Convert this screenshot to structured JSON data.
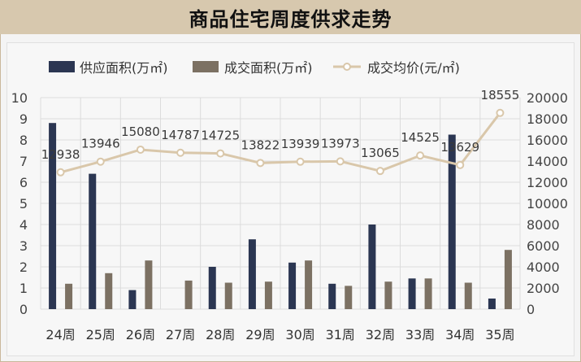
{
  "page": {
    "title": "商品住宅周度供求走势"
  },
  "colors": {
    "supply": "#2b3652",
    "deal": "#7c7163",
    "price_line": "#d9c7aa",
    "title_bg": "#d7c8ae"
  },
  "chart_data": {
    "type": "bar",
    "title": "商品住宅周度供求走势",
    "categories": [
      "24周",
      "25周",
      "26周",
      "27周",
      "28周",
      "29周",
      "30周",
      "31周",
      "32周",
      "33周",
      "34周",
      "35周"
    ],
    "series": [
      {
        "name": "供应面积(万㎡)",
        "type": "bar",
        "axis": "left",
        "values": [
          8.8,
          6.4,
          0.9,
          0,
          2.0,
          3.3,
          2.2,
          1.2,
          4.0,
          1.45,
          8.25,
          0.5
        ]
      },
      {
        "name": "成交面积(万㎡)",
        "type": "bar",
        "axis": "left",
        "values": [
          1.2,
          1.7,
          2.3,
          1.35,
          1.25,
          1.3,
          2.3,
          1.1,
          1.3,
          1.45,
          1.25,
          2.8
        ]
      },
      {
        "name": "成交均价(元/㎡)",
        "type": "line",
        "axis": "right",
        "values": [
          12938,
          13946,
          15080,
          14787,
          14725,
          13822,
          13939,
          13973,
          13065,
          14525,
          13629,
          18555
        ],
        "labels": [
          "12938",
          "13946",
          "15080",
          "14787",
          "14725",
          "13822",
          "13939",
          "13973",
          "13065",
          "14525",
          "13629",
          "18555"
        ]
      }
    ],
    "y_left": {
      "ylim": [
        0,
        10
      ],
      "ticks": [
        "0",
        "1",
        "2",
        "3",
        "4",
        "5",
        "6",
        "7",
        "8",
        "9",
        "10"
      ]
    },
    "y_right": {
      "ylim": [
        0,
        20000
      ],
      "ticks": [
        "0",
        "2000",
        "4000",
        "6000",
        "8000",
        "10000",
        "12000",
        "14000",
        "16000",
        "18000",
        "20000"
      ]
    },
    "grid": true,
    "legend_position": "top"
  }
}
